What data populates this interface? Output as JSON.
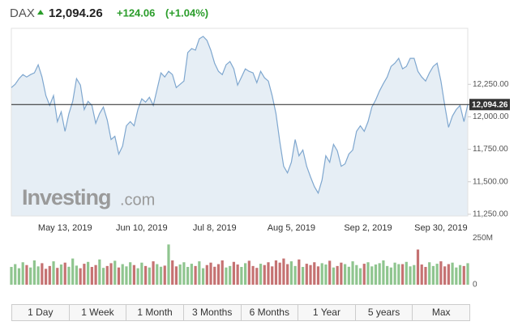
{
  "header": {
    "symbol": "DAX",
    "price": "12,094.26",
    "change": "+124.06",
    "change_pct": "(+1.04%)"
  },
  "chart_data": {
    "type": "line",
    "watermark": [
      "Investing",
      ".com"
    ],
    "categories": [
      null,
      null,
      null,
      null,
      null,
      null,
      null,
      null,
      null,
      null,
      null,
      null,
      null,
      null,
      "May 13, 2019",
      null,
      null,
      null,
      null,
      null,
      null,
      null,
      null,
      null,
      null,
      null,
      null,
      null,
      null,
      null,
      null,
      null,
      null,
      null,
      "Jun 10, 2019",
      null,
      null,
      null,
      null,
      null,
      null,
      null,
      null,
      null,
      null,
      null,
      null,
      null,
      null,
      null,
      null,
      null,
      null,
      "Jul 8, 2019",
      null,
      null,
      null,
      null,
      null,
      null,
      null,
      null,
      null,
      null,
      null,
      null,
      null,
      null,
      null,
      null,
      null,
      null,
      null,
      "Aug 5, 2019",
      null,
      null,
      null,
      null,
      null,
      null,
      null,
      null,
      null,
      null,
      null,
      null,
      null,
      null,
      null,
      null,
      null,
      null,
      null,
      "Sep 2, 2019",
      null,
      null,
      null,
      null,
      null,
      null,
      null,
      null,
      null,
      null,
      null,
      null,
      null,
      null,
      null,
      null,
      null,
      null,
      "Sep 30, 2019",
      null,
      null,
      null,
      null,
      null,
      null,
      null
    ],
    "series": [
      {
        "name": "DAX",
        "color": "#7fa7cf",
        "fill": "#e6eef5",
        "values": [
          12225,
          12250,
          12294,
          12325,
          12306,
          12325,
          12338,
          12400,
          12306,
          12163,
          12088,
          12163,
          11963,
          12038,
          11888,
          12025,
          12119,
          12294,
          12244,
          12056,
          12119,
          12088,
          11950,
          12025,
          12075,
          11975,
          11825,
          11850,
          11713,
          11775,
          11931,
          11963,
          11931,
          12056,
          12138,
          12113,
          12150,
          12088,
          12213,
          12338,
          12306,
          12350,
          12325,
          12225,
          12250,
          12275,
          12494,
          12525,
          12513,
          12600,
          12619,
          12588,
          12513,
          12413,
          12350,
          12325,
          12400,
          12425,
          12369,
          12244,
          12306,
          12369,
          12350,
          12338,
          12263,
          12350,
          12300,
          12275,
          12163,
          12025,
          11806,
          11619,
          11569,
          11650,
          11825,
          11700,
          11744,
          11619,
          11538,
          11463,
          11413,
          11513,
          11700,
          11650,
          11788,
          11738,
          11619,
          11638,
          11713,
          11744,
          11888,
          11931,
          11888,
          11963,
          12075,
          12131,
          12200,
          12256,
          12306,
          12388,
          12413,
          12450,
          12369,
          12388,
          12450,
          12450,
          12350,
          12306,
          12275,
          12338,
          12388,
          12413,
          12275,
          12088,
          11919,
          12006,
          12056,
          12088,
          11963,
          12094
        ]
      }
    ],
    "ylim": [
      11237,
      12681
    ],
    "yticks": [
      {
        "value": 11250,
        "label": "11,250.00"
      },
      {
        "value": 11500,
        "label": "11,500.00"
      },
      {
        "value": 11750,
        "label": "11,750.00"
      },
      {
        "value": 12000,
        "label": "12,000.00"
      },
      {
        "value": 12250,
        "label": "12,250.00"
      }
    ],
    "last_price": {
      "value": 12094.26,
      "label": "12,094.26"
    },
    "grid": false,
    "volume": {
      "up_color": "#8fc58f",
      "down_color": "#c57272",
      "values": [
        95,
        110,
        88,
        120,
        105,
        92,
        130,
        98,
        115,
        85,
        100,
        125,
        90,
        108,
        118,
        96,
        140,
        102,
        88,
        112,
        122,
        95,
        105,
        135,
        90,
        100,
        115,
        128,
        92,
        110,
        98,
        120,
        105,
        88,
        118,
        100,
        92,
        125,
        110,
        96,
        102,
        215,
        130,
        98,
        108,
        120,
        95,
        112,
        100,
        125,
        88,
        105,
        118,
        96,
        110,
        130,
        92,
        100,
        122,
        108,
        95,
        115,
        128,
        100,
        90,
        112,
        105,
        120,
        98,
        130,
        118,
        140,
        110,
        125,
        100,
        135,
        95,
        112,
        105,
        120,
        98,
        115,
        108,
        128,
        92,
        100,
        118,
        110,
        96,
        125,
        105,
        88,
        112,
        120,
        98,
        108,
        115,
        130,
        100,
        92,
        118,
        110,
        110,
        122,
        98,
        105,
        188,
        108,
        95,
        120,
        100,
        112,
        125,
        98,
        110,
        118,
        92,
        105,
        100,
        115
      ],
      "ylim": [
        0,
        268
      ],
      "yticks": [
        0,
        {
          "value": 250,
          "label": "250M"
        }
      ]
    }
  },
  "ranges": [
    "1 Day",
    "1 Week",
    "1 Month",
    "3 Months",
    "6 Months",
    "1 Year",
    "5 years",
    "Max"
  ]
}
